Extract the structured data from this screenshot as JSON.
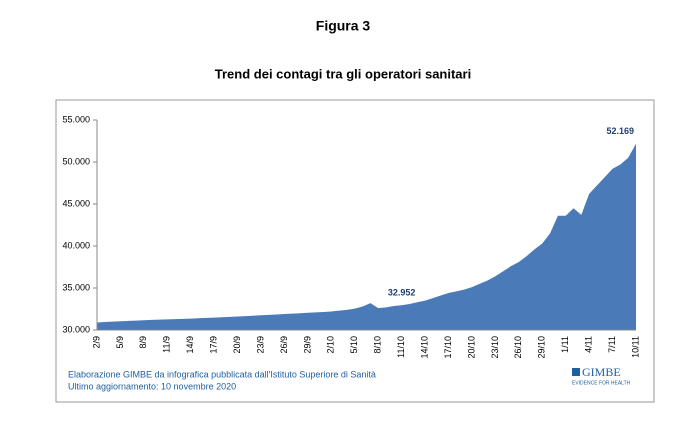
{
  "chart_data": {
    "type": "area",
    "figure_label": "Figura 3",
    "title": "Trend dei contagi tra gli operatori sanitari",
    "source": "Elaborazione GIMBE da infografica pubblicata dall'Istituto Superiore di Sanità",
    "updated": "Ultimo aggiornamento: 10 novembre 2020",
    "logo": "GIMBE",
    "logo_tagline": "EVIDENCE FOR HEALTH",
    "color": "#4a7ab8",
    "grid": false,
    "ylim": [
      30000,
      55000
    ],
    "yticks": [
      {
        "value": 30000,
        "label": "30.000"
      },
      {
        "value": 35000,
        "label": "35.000"
      },
      {
        "value": 40000,
        "label": "40.000"
      },
      {
        "value": 45000,
        "label": "45.000"
      },
      {
        "value": 50000,
        "label": "50.000"
      },
      {
        "value": 55000,
        "label": "55.000"
      }
    ],
    "categories": [
      "2/9",
      null,
      null,
      "5/9",
      null,
      null,
      "8/9",
      null,
      null,
      "11/9",
      null,
      null,
      "14/9",
      null,
      null,
      "17/9",
      null,
      null,
      "20/9",
      null,
      null,
      "23/9",
      null,
      null,
      "26/9",
      null,
      null,
      "29/9",
      null,
      null,
      "2/10",
      null,
      null,
      "5/10",
      null,
      null,
      "8/10",
      null,
      null,
      "11/10",
      null,
      null,
      "14/10",
      null,
      null,
      "17/10",
      null,
      null,
      "20/10",
      null,
      null,
      "23/10",
      null,
      null,
      "26/10",
      null,
      null,
      "29/10",
      null,
      null,
      "1/11",
      null,
      null,
      "4/11",
      null,
      null,
      "7/11",
      null,
      null,
      "10/11"
    ],
    "values": [
      30900,
      30950,
      31000,
      31040,
      31080,
      31120,
      31160,
      31200,
      31240,
      31270,
      31300,
      31330,
      31360,
      31400,
      31440,
      31480,
      31520,
      31560,
      31600,
      31650,
      31700,
      31750,
      31800,
      31850,
      31900,
      31950,
      32000,
      32050,
      32100,
      32150,
      32200,
      32300,
      32400,
      32550,
      32800,
      33200,
      32600,
      32700,
      32850,
      32952,
      33100,
      33300,
      33500,
      33800,
      34100,
      34400,
      34600,
      34800,
      35100,
      35500,
      35900,
      36400,
      37000,
      37600,
      38100,
      38800,
      39600,
      40300,
      41500,
      43600,
      43600,
      44500,
      43700,
      46200,
      47200,
      48200,
      49200,
      49700,
      50500,
      52169
    ],
    "value_labels": [
      null,
      null,
      null,
      null,
      null,
      null,
      null,
      null,
      null,
      null,
      null,
      null,
      null,
      null,
      null,
      null,
      null,
      null,
      null,
      null,
      null,
      null,
      null,
      null,
      null,
      null,
      null,
      null,
      null,
      null,
      null,
      null,
      null,
      null,
      null,
      null,
      null,
      null,
      null,
      "32.952",
      null,
      null,
      null,
      null,
      null,
      null,
      null,
      null,
      null,
      null,
      null,
      null,
      null,
      null,
      null,
      null,
      null,
      null,
      null,
      null,
      null,
      null,
      null,
      null,
      null,
      null,
      null,
      null,
      null,
      "52.169"
    ]
  }
}
